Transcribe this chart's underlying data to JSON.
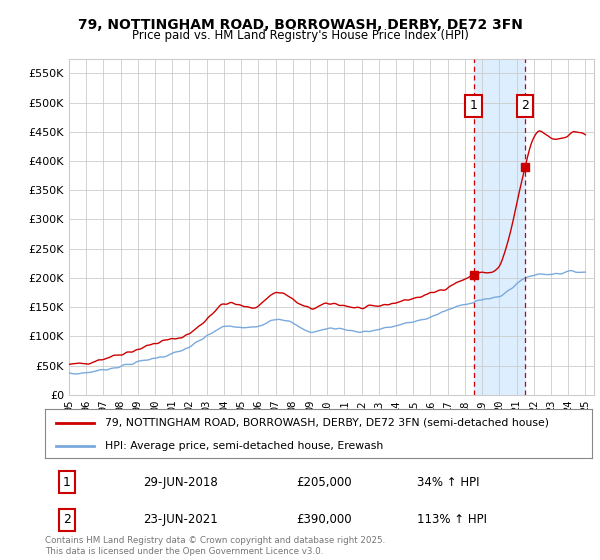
{
  "title": "79, NOTTINGHAM ROAD, BORROWASH, DERBY, DE72 3FN",
  "subtitle": "Price paid vs. HM Land Registry's House Price Index (HPI)",
  "legend1": "79, NOTTINGHAM ROAD, BORROWASH, DERBY, DE72 3FN (semi-detached house)",
  "legend2": "HPI: Average price, semi-detached house, Erewash",
  "annotation1_label": "1",
  "annotation1_date": "29-JUN-2018",
  "annotation1_price": "£205,000",
  "annotation1_hpi": "34% ↑ HPI",
  "annotation2_label": "2",
  "annotation2_date": "23-JUN-2021",
  "annotation2_price": "£390,000",
  "annotation2_hpi": "113% ↑ HPI",
  "footer": "Contains HM Land Registry data © Crown copyright and database right 2025.\nThis data is licensed under the Open Government Licence v3.0.",
  "ylim": [
    0,
    575000
  ],
  "yticks": [
    0,
    50000,
    100000,
    150000,
    200000,
    250000,
    300000,
    350000,
    400000,
    450000,
    500000,
    550000
  ],
  "ytick_labels": [
    "£0",
    "£50K",
    "£100K",
    "£150K",
    "£200K",
    "£250K",
    "£300K",
    "£350K",
    "£400K",
    "£450K",
    "£500K",
    "£550K"
  ],
  "red_color": "#cc0000",
  "blue_color": "#7aaadd",
  "shade_color": "#ddeeff",
  "annotation_vline_color": "#cc0000",
  "annotation_box_color": "#cc0000",
  "background_color": "#ffffff",
  "plot_bg_color": "#ffffff",
  "grid_color": "#cccccc",
  "ann1_x": 2018.5,
  "ann1_y": 205000,
  "ann2_x": 2021.5,
  "ann2_y": 390000,
  "xmin": 1995,
  "xmax": 2025.5,
  "xtick_step": 1
}
